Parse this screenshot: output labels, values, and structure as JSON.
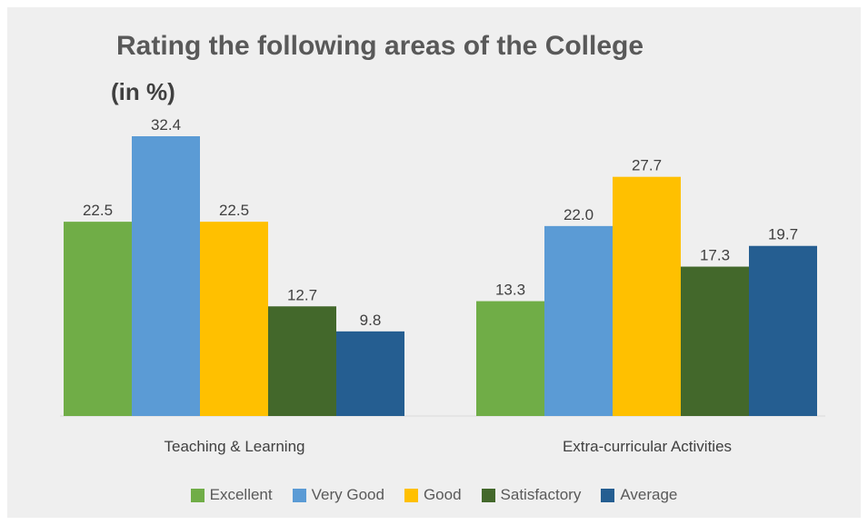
{
  "chart_data": {
    "type": "bar",
    "title": "Rating the following areas of the College",
    "subtitle": "(in %)",
    "categories": [
      "Teaching & Learning",
      "Extra-curricular Activities"
    ],
    "series": [
      {
        "name": "Excellent",
        "color": "#70ad47",
        "values": [
          22.5,
          13.3
        ],
        "labels": [
          "22.5",
          "13.3"
        ]
      },
      {
        "name": "Very Good",
        "color": "#5b9bd5",
        "values": [
          32.4,
          22.0
        ],
        "labels": [
          "32.4",
          "22.0"
        ]
      },
      {
        "name": "Good",
        "color": "#ffc000",
        "values": [
          22.5,
          27.7
        ],
        "labels": [
          "22.5",
          "27.7"
        ]
      },
      {
        "name": "Satisfactory",
        "color": "#43682b",
        "values": [
          12.7,
          17.3
        ],
        "labels": [
          "12.7",
          "17.3"
        ]
      },
      {
        "name": "Average",
        "color": "#255e91",
        "values": [
          9.8,
          19.7
        ],
        "labels": [
          "9.8",
          "19.7"
        ]
      }
    ],
    "ylim": [
      0,
      32.4
    ],
    "grid": false,
    "legend": "bottom"
  }
}
